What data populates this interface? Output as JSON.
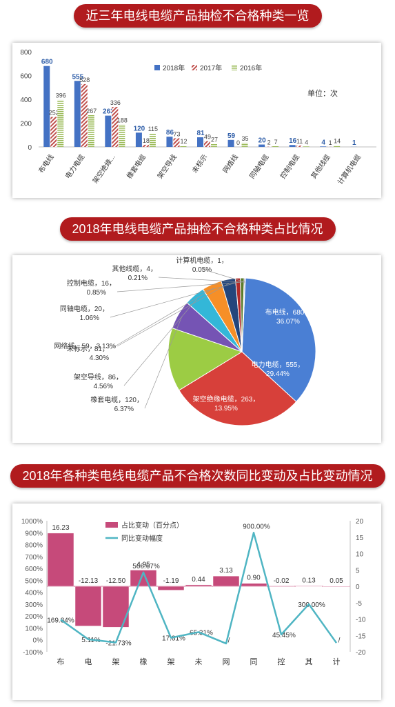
{
  "banners": {
    "b1": "近三年电线电缆产品抽检不合格种类一览",
    "b2": "2018年电线电缆产品抽检不合格种类占比情况",
    "b3": "2018年各种类电线电缆产品不合格次数同比变动及占比变动情况"
  },
  "chart_data": [
    {
      "type": "bar",
      "categories": [
        "布电线",
        "电力电缆",
        "架空绝缘...",
        "橡套电缆",
        "架空导线",
        "未标示",
        "网络线",
        "同轴电缆",
        "控制电缆",
        "其他线缆",
        "计算机电缆"
      ],
      "series": [
        {
          "name": "2018年",
          "values": [
            680,
            555,
            263,
            120,
            86,
            81,
            59,
            20,
            16,
            4,
            1
          ],
          "color": "#4472c4"
        },
        {
          "name": "2017年",
          "values": [
            252,
            528,
            336,
            18,
            73,
            49,
            0,
            2,
            11,
            1,
            null
          ],
          "color": "#c0504d"
        },
        {
          "name": "2016年",
          "values": [
            396,
            267,
            188,
            115,
            12,
            27,
            35,
            7,
            4,
            14,
            null
          ],
          "color": "#9bbb59"
        }
      ],
      "ylim": [
        0,
        800
      ],
      "yticks": [
        "0",
        "200",
        "400",
        "600",
        "800"
      ],
      "annotation": "单位：次",
      "legend_position": "top-right"
    },
    {
      "type": "pie",
      "slices": [
        {
          "label": "布电线，680，36.07%",
          "value": 680,
          "color": "#4a7fd4"
        },
        {
          "label": "电力电缆，555，29.44%",
          "value": 555,
          "color": "#d7403a"
        },
        {
          "label": "架空绝缘电缆，263，13.95%",
          "value": 263,
          "color": "#9ccc44"
        },
        {
          "label": "橡套电缆，120，6.37%",
          "value": 120,
          "color": "#7554b4"
        },
        {
          "label": "架空导线，86，4.56%",
          "value": 86,
          "color": "#33b7d8"
        },
        {
          "label": "未标示，81，4.30%",
          "value": 81,
          "color": "#f68f27"
        },
        {
          "label": "网络线，59，3.13%",
          "value": 59,
          "color": "#23467c"
        },
        {
          "label": "同轴电缆，20，1.06%",
          "value": 20,
          "color": "#b02a2a"
        },
        {
          "label": "控制电缆，16，0.85%",
          "value": 16,
          "color": "#5c7c2c"
        },
        {
          "label": "其他线缆，4，0.21%",
          "value": 4,
          "color": "#4a3278"
        },
        {
          "label": "计算机电缆，1，0.05%",
          "value": 1,
          "color": "#1f8aaa"
        }
      ]
    },
    {
      "type": "bar",
      "categories": [
        "布",
        "电",
        "架",
        "橡",
        "架",
        "未",
        "网",
        "同",
        "控",
        "其",
        "计"
      ],
      "series": [
        {
          "name": "占比变动（百分点）",
          "values": [
            16.23,
            -12.13,
            -12.5,
            4.95,
            -1.19,
            0.44,
            3.13,
            0.9,
            -0.02,
            0.13,
            0.05
          ],
          "color": "#c64a7a",
          "axis": "right"
        },
        {
          "name": "同比变动幅度",
          "type": "line",
          "values": [
            169.84,
            5.11,
            -21.73,
            566.67,
            17.81,
            65.31,
            null,
            900.0,
            45.45,
            300.0,
            null
          ],
          "color": "#4fb5c3",
          "axis": "left"
        }
      ],
      "bar_labels": [
        "16.23",
        "-12.13",
        "-12.50",
        "4.95",
        "-1.19",
        "0.44",
        "3.13",
        "0.90",
        "-0.02",
        "0.13",
        "0.05"
      ],
      "line_labels": [
        "169.84%",
        "5.11%",
        "-21.73%",
        "566.67%",
        "17.81%",
        "65.31%",
        "/",
        "900.00%",
        "45.45%",
        "300.00%",
        "/"
      ],
      "ylim_left": [
        -100,
        1000
      ],
      "yticks_left": [
        "-100%",
        "0%",
        "100%",
        "200%",
        "300%",
        "400%",
        "500%",
        "600%",
        "700%",
        "800%",
        "900%",
        "1000%"
      ],
      "ylim_right": [
        -20,
        20
      ],
      "yticks_right": [
        "-20",
        "-15",
        "-10",
        "-5",
        "0",
        "5",
        "10",
        "15",
        "20"
      ],
      "legend_position": "top-center"
    }
  ]
}
